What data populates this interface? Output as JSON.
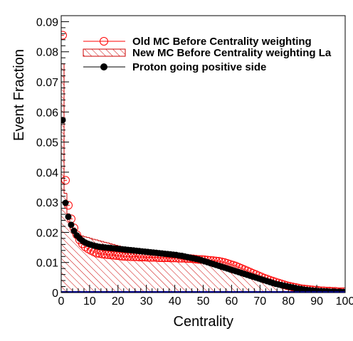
{
  "chart_data": {
    "type": "line",
    "title": "",
    "xlabel": "Centrality",
    "ylabel": "Event Fraction",
    "xlim": [
      0,
      100
    ],
    "ylim": [
      0,
      0.092
    ],
    "x_ticks": [
      "0",
      "10",
      "20",
      "30",
      "40",
      "50",
      "60",
      "70",
      "80",
      "90",
      "100"
    ],
    "y_ticks": [
      "0",
      "0.01",
      "0.02",
      "0.03",
      "0.04",
      "0.05",
      "0.06",
      "0.07",
      "0.08",
      "0.09"
    ],
    "grid": false,
    "legend_position": "top-right",
    "legend": [
      "Old MC Before Centrality weighting",
      "New MC Before Centrality weighting La",
      "Proton going positive side"
    ],
    "colors": {
      "old_mc": "#ff0000",
      "new_mc": "#cc0000",
      "proton": "#000000",
      "axis": "#000000",
      "baseline": "#000080"
    },
    "series": [
      {
        "name": "Old MC Before Centrality weighting",
        "style": "open-circles",
        "x": [
          0.5,
          1.5,
          2.5,
          3.5,
          4.5,
          5.5,
          6.5,
          7.5,
          8.5,
          9.5,
          10.5,
          11.5,
          12.5,
          13.5,
          14.5,
          15.5,
          16.5,
          17.5,
          18.5,
          19.5,
          20.5,
          21.5,
          22.5,
          23.5,
          24.5,
          25.5,
          26.5,
          27.5,
          28.5,
          29.5,
          30.5,
          31.5,
          32.5,
          33.5,
          34.5,
          35.5,
          36.5,
          37.5,
          38.5,
          39.5,
          40.5,
          41.5,
          42.5,
          43.5,
          44.5,
          45.5,
          46.5,
          47.5,
          48.5,
          49.5,
          50.5,
          51.5,
          52.5,
          53.5,
          54.5,
          55.5,
          56.5,
          57.5,
          58.5,
          59.5,
          60.5,
          61.5,
          62.5,
          63.5,
          64.5,
          65.5,
          66.5,
          67.5,
          68.5,
          69.5,
          70.5,
          71.5,
          72.5,
          73.5,
          74.5,
          75.5,
          76.5,
          77.5,
          78.5,
          79.5,
          80.5,
          81.5,
          82.5,
          83.5,
          84.5,
          85.5,
          86.5,
          87.5,
          88.5,
          89.5,
          90.5,
          91.5,
          92.5,
          93.5,
          94.5,
          95.5,
          96.5,
          97.5,
          98.5,
          99.5
        ],
        "values": [
          0.0855,
          0.0373,
          0.029,
          0.0245,
          0.0215,
          0.0192,
          0.0175,
          0.0162,
          0.0152,
          0.0145,
          0.014,
          0.0135,
          0.0131,
          0.013,
          0.0128,
          0.0127,
          0.0126,
          0.0125,
          0.0124,
          0.0123,
          0.0122,
          0.0121,
          0.012,
          0.012,
          0.0119,
          0.0119,
          0.0119,
          0.0118,
          0.0118,
          0.0118,
          0.0117,
          0.0117,
          0.0117,
          0.0117,
          0.0116,
          0.0116,
          0.0116,
          0.0116,
          0.0115,
          0.0115,
          0.0115,
          0.0114,
          0.0114,
          0.0114,
          0.0113,
          0.0113,
          0.0112,
          0.0111,
          0.011,
          0.011,
          0.0109,
          0.0108,
          0.0107,
          0.0106,
          0.0105,
          0.0104,
          0.0102,
          0.01,
          0.0097,
          0.0094,
          0.0091,
          0.0088,
          0.0084,
          0.008,
          0.0076,
          0.0072,
          0.0068,
          0.0064,
          0.006,
          0.0056,
          0.0052,
          0.0048,
          0.0045,
          0.0041,
          0.0038,
          0.0035,
          0.0032,
          0.0029,
          0.0026,
          0.0023,
          0.0021,
          0.0019,
          0.0017,
          0.0015,
          0.0013,
          0.0012,
          0.0011,
          0.001,
          0.0009,
          0.0008,
          0.0007,
          0.0006,
          0.0006,
          0.0005,
          0.0005,
          0.0004,
          0.0004,
          0.0003,
          0.0003,
          0.0003
        ]
      },
      {
        "name": "New MC Before Centrality weighting La",
        "style": "hatched-histogram",
        "x": [
          0.5,
          1.5,
          2.5,
          3.5,
          4.5,
          5.5,
          6.5,
          7.5,
          8.5,
          9.5,
          10.5,
          11.5,
          12.5,
          13.5,
          14.5,
          15.5,
          16.5,
          17.5,
          18.5,
          19.5,
          20.5,
          21.5,
          22.5,
          23.5,
          24.5,
          25.5,
          26.5,
          27.5,
          28.5,
          29.5,
          30.5,
          31.5,
          32.5,
          33.5,
          34.5,
          35.5,
          36.5,
          37.5,
          38.5,
          39.5,
          40.5,
          41.5,
          42.5,
          43.5,
          44.5,
          45.5,
          46.5,
          47.5,
          48.5,
          49.5,
          50.5,
          51.5,
          52.5,
          53.5,
          54.5,
          55.5,
          56.5,
          57.5,
          58.5,
          59.5,
          60.5,
          61.5,
          62.5,
          63.5,
          64.5,
          65.5,
          66.5,
          67.5,
          68.5,
          69.5,
          70.5,
          71.5,
          72.5,
          73.5,
          74.5,
          75.5,
          76.5,
          77.5,
          78.5,
          79.5,
          80.5,
          81.5,
          82.5,
          83.5,
          84.5,
          85.5,
          86.5,
          87.5,
          88.5,
          89.5,
          90.5,
          91.5,
          92.5,
          93.5,
          94.5,
          95.5,
          96.5,
          97.5,
          98.5,
          99.5
        ],
        "values": [
          0.076,
          0.033,
          0.0262,
          0.0225,
          0.0208,
          0.0198,
          0.0192,
          0.0188,
          0.0185,
          0.0183,
          0.018,
          0.0177,
          0.0175,
          0.0172,
          0.017,
          0.0167,
          0.0165,
          0.0162,
          0.016,
          0.0157,
          0.0155,
          0.0152,
          0.015,
          0.0148,
          0.0145,
          0.0143,
          0.0141,
          0.0139,
          0.0137,
          0.0135,
          0.0133,
          0.0131,
          0.0129,
          0.0127,
          0.0125,
          0.0123,
          0.0121,
          0.0119,
          0.0118,
          0.0116,
          0.0115,
          0.0113,
          0.0112,
          0.011,
          0.0108,
          0.0106,
          0.0104,
          0.0102,
          0.01,
          0.0098,
          0.0095,
          0.0093,
          0.009,
          0.0087,
          0.0085,
          0.0082,
          0.0079,
          0.0076,
          0.0073,
          0.007,
          0.0067,
          0.0064,
          0.0061,
          0.0058,
          0.0055,
          0.0052,
          0.0049,
          0.0046,
          0.0043,
          0.004,
          0.0038,
          0.0035,
          0.0033,
          0.003,
          0.0028,
          0.0026,
          0.0024,
          0.0022,
          0.002,
          0.0018,
          0.0016,
          0.0015,
          0.0013,
          0.0012,
          0.0011,
          0.001,
          0.0009,
          0.0008,
          0.0007,
          0.0006,
          0.0006,
          0.0005,
          0.0005,
          0.0004,
          0.0004,
          0.0003,
          0.0003,
          0.0003,
          0.0002,
          0.0002
        ]
      },
      {
        "name": "Proton going positive side",
        "style": "filled-circles",
        "x": [
          0.5,
          1.5,
          2.5,
          3.5,
          4.5,
          5.5,
          6.5,
          7.5,
          8.5,
          9.5,
          10.5,
          11.5,
          12.5,
          13.5,
          14.5,
          15.5,
          16.5,
          17.5,
          18.5,
          19.5,
          20.5,
          21.5,
          22.5,
          23.5,
          24.5,
          25.5,
          26.5,
          27.5,
          28.5,
          29.5,
          30.5,
          31.5,
          32.5,
          33.5,
          34.5,
          35.5,
          36.5,
          37.5,
          38.5,
          39.5,
          40.5,
          41.5,
          42.5,
          43.5,
          44.5,
          45.5,
          46.5,
          47.5,
          48.5,
          49.5,
          50.5,
          51.5,
          52.5,
          53.5,
          54.5,
          55.5,
          56.5,
          57.5,
          58.5,
          59.5,
          60.5,
          61.5,
          62.5,
          63.5,
          64.5,
          65.5,
          66.5,
          67.5,
          68.5,
          69.5,
          70.5,
          71.5,
          72.5,
          73.5,
          74.5,
          75.5,
          76.5,
          77.5,
          78.5,
          79.5,
          80.5,
          81.5,
          82.5,
          83.5,
          84.5,
          85.5,
          86.5,
          87.5,
          88.5,
          89.5,
          90.5,
          91.5,
          92.5,
          93.5,
          94.5,
          95.5,
          96.5,
          97.5,
          98.5,
          99.5
        ],
        "values": [
          0.0573,
          0.0298,
          0.0252,
          0.0225,
          0.0205,
          0.019,
          0.018,
          0.0172,
          0.0166,
          0.0162,
          0.0159,
          0.0156,
          0.0154,
          0.0152,
          0.0151,
          0.015,
          0.0149,
          0.0148,
          0.0147,
          0.0146,
          0.0145,
          0.0144,
          0.0143,
          0.0142,
          0.0141,
          0.014,
          0.0139,
          0.0138,
          0.0137,
          0.0136,
          0.0135,
          0.0134,
          0.0133,
          0.0132,
          0.0131,
          0.013,
          0.0129,
          0.0128,
          0.0127,
          0.0126,
          0.0125,
          0.0123,
          0.0122,
          0.012,
          0.0118,
          0.0116,
          0.0114,
          0.0112,
          0.011,
          0.0107,
          0.0104,
          0.0101,
          0.0098,
          0.0095,
          0.0092,
          0.0089,
          0.0086,
          0.0083,
          0.008,
          0.0077,
          0.0074,
          0.0071,
          0.0068,
          0.0065,
          0.0062,
          0.0059,
          0.0056,
          0.0053,
          0.005,
          0.0047,
          0.0044,
          0.0041,
          0.0038,
          0.0035,
          0.0032,
          0.0029,
          0.0027,
          0.0025,
          0.0023,
          0.0021,
          0.0019,
          0.0017,
          0.0015,
          0.0013,
          0.0012,
          0.001,
          0.0009,
          0.0008,
          0.0007,
          0.0006,
          0.0005,
          0.0005,
          0.0004,
          0.0004,
          0.0003,
          0.0003,
          0.0003,
          0.0002,
          0.0002,
          0.0002
        ]
      }
    ]
  }
}
